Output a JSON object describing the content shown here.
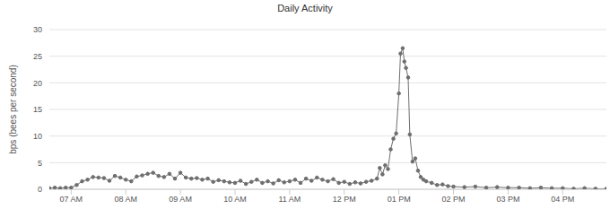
{
  "chart_data": {
    "type": "line",
    "title": "Daily Activity",
    "y_label": "bps (bees per second)",
    "x": [
      6.6,
      6.7,
      6.8,
      6.9,
      7.0,
      7.1,
      7.2,
      7.3,
      7.4,
      7.5,
      7.6,
      7.7,
      7.8,
      7.9,
      8.0,
      8.1,
      8.2,
      8.3,
      8.4,
      8.5,
      8.6,
      8.7,
      8.8,
      8.9,
      9.0,
      9.1,
      9.2,
      9.3,
      9.4,
      9.5,
      9.6,
      9.7,
      9.8,
      9.9,
      10.0,
      10.1,
      10.2,
      10.3,
      10.4,
      10.5,
      10.6,
      10.7,
      10.8,
      10.9,
      11.0,
      11.1,
      11.2,
      11.3,
      11.4,
      11.5,
      11.6,
      11.7,
      11.8,
      11.9,
      12.0,
      12.1,
      12.2,
      12.3,
      12.4,
      12.5,
      12.6,
      12.65,
      12.7,
      12.75,
      12.8,
      12.85,
      12.9,
      12.95,
      13.0,
      13.03,
      13.07,
      13.1,
      13.13,
      13.17,
      13.2,
      13.25,
      13.3,
      13.35,
      13.4,
      13.45,
      13.5,
      13.6,
      13.7,
      13.8,
      13.9,
      14.0,
      14.2,
      14.4,
      14.6,
      14.8,
      15.0,
      15.2,
      15.4,
      15.6,
      15.8,
      16.0,
      16.2,
      16.4,
      16.6,
      16.8
    ],
    "series": [
      {
        "name": "bps",
        "color": "#6e6e6e",
        "marker": "circle",
        "line_style": "solid",
        "values": [
          0.2,
          0.3,
          0.2,
          0.3,
          0.3,
          0.8,
          1.5,
          1.8,
          2.3,
          2.2,
          2.1,
          1.6,
          2.5,
          2.2,
          1.8,
          1.5,
          2.4,
          2.6,
          2.9,
          3.1,
          2.5,
          2.3,
          2.9,
          2.0,
          3.1,
          2.2,
          2.0,
          2.1,
          1.8,
          2.0,
          1.4,
          1.7,
          1.5,
          1.3,
          1.2,
          1.6,
          1.0,
          1.4,
          1.8,
          1.2,
          1.5,
          1.1,
          1.7,
          1.3,
          1.5,
          1.8,
          1.2,
          2.0,
          1.6,
          2.2,
          1.8,
          1.5,
          1.9,
          1.2,
          1.4,
          1.0,
          1.3,
          1.1,
          1.4,
          1.6,
          2.0,
          4.0,
          2.8,
          4.5,
          3.8,
          7.5,
          9.5,
          10.5,
          18.0,
          25.5,
          26.5,
          24.0,
          22.8,
          21.0,
          10.3,
          5.2,
          5.8,
          3.5,
          2.3,
          1.8,
          1.5,
          1.2,
          0.8,
          0.9,
          0.6,
          0.5,
          0.4,
          0.5,
          0.3,
          0.4,
          0.3,
          0.3,
          0.2,
          0.3,
          0.2,
          0.2,
          0.1,
          0.2,
          0.1,
          0.1
        ]
      }
    ],
    "xlim": [
      6.6,
      16.8
    ],
    "xticks": [
      {
        "value": 7,
        "label": "07 AM"
      },
      {
        "value": 8,
        "label": "08 AM"
      },
      {
        "value": 9,
        "label": "09 AM"
      },
      {
        "value": 10,
        "label": "10 AM"
      },
      {
        "value": 11,
        "label": "11 AM"
      },
      {
        "value": 12,
        "label": "12 PM"
      },
      {
        "value": 13,
        "label": "01 PM"
      },
      {
        "value": 14,
        "label": "02 PM"
      },
      {
        "value": 15,
        "label": "03 PM"
      },
      {
        "value": 16,
        "label": "04 PM"
      }
    ],
    "ylim": [
      0,
      30
    ],
    "yticks": [
      0,
      5,
      10,
      15,
      20,
      25,
      30
    ],
    "grid": true
  }
}
